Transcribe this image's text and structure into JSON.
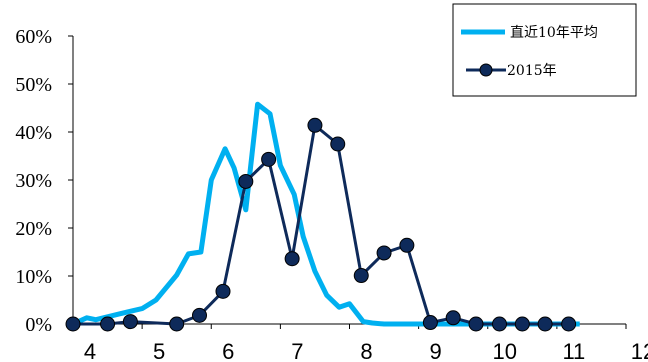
{
  "chart_data": {
    "type": "line",
    "title": "",
    "xlabel": "",
    "ylabel": "",
    "x_ticks": [
      "4",
      "5",
      "6",
      "7",
      "8",
      "9",
      "10",
      "11",
      "12"
    ],
    "xlim": [
      4,
      12
    ],
    "y_ticks": [
      "0%",
      "10%",
      "20%",
      "30%",
      "40%",
      "50%",
      "60%"
    ],
    "ylim": [
      0,
      60
    ],
    "grid": false,
    "legend_position": "top-right",
    "series": [
      {
        "name": "直近10年平均",
        "color": "#00B0F0",
        "marker": "none",
        "x": [
          4.0,
          4.2,
          4.33,
          4.67,
          5.0,
          5.2,
          5.5,
          5.67,
          5.85,
          6.0,
          6.2,
          6.33,
          6.5,
          6.67,
          6.85,
          7.0,
          7.2,
          7.33,
          7.5,
          7.67,
          7.85,
          8.0,
          8.2,
          8.33,
          8.5,
          8.67,
          8.85,
          9.0,
          9.2,
          9.33,
          9.5,
          9.67,
          9.85,
          10.0,
          10.2,
          10.33,
          10.5,
          10.67,
          10.85,
          11.0,
          11.2,
          11.33
        ],
        "y": [
          0.0,
          1.3,
          0.9,
          2.1,
          3.2,
          5.0,
          10.2,
          14.6,
          15.0,
          30.0,
          36.5,
          32.5,
          23.8,
          45.8,
          43.8,
          33.0,
          27.0,
          18.2,
          11.0,
          6.0,
          3.5,
          4.2,
          0.5,
          0.2,
          0.0,
          0.0,
          0.0,
          0.0,
          0.0,
          0.0,
          0.0,
          0.0,
          0.0,
          0.0,
          0.0,
          0.0,
          0.0,
          0.0,
          0.0,
          0.0,
          0.0,
          0.0
        ]
      },
      {
        "name": "2015年",
        "color": "#0E2A5A",
        "marker": "circle",
        "x": [
          4.0,
          4.5,
          4.83,
          5.5,
          5.83,
          6.17,
          6.5,
          6.83,
          7.17,
          7.5,
          7.83,
          8.17,
          8.5,
          8.83,
          9.17,
          9.5,
          9.83,
          10.17,
          10.5,
          10.83,
          11.17
        ],
        "y": [
          0.0,
          0.0,
          0.5,
          0.0,
          1.8,
          6.8,
          29.7,
          34.3,
          13.6,
          41.4,
          37.5,
          10.1,
          14.8,
          16.4,
          0.3,
          1.3,
          0.0,
          0.0,
          0.0,
          0.0,
          0.0
        ]
      }
    ]
  }
}
